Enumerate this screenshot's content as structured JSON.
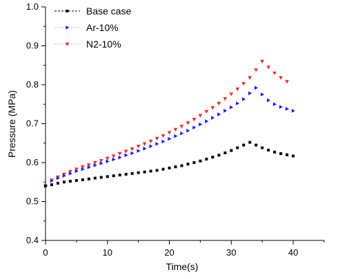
{
  "chart_data": {
    "type": "scatter",
    "xlabel": "Time(s)",
    "ylabel": "Pressure (MPa)",
    "xlim": [
      0,
      45
    ],
    "ylim": [
      0.4,
      1.0
    ],
    "x_ticks": [
      0,
      10,
      20,
      30,
      40
    ],
    "y_ticks": [
      0.4,
      0.5,
      0.6,
      0.7,
      0.8,
      0.9,
      1.0
    ],
    "y_tick_labels": [
      "0.4",
      "0.5",
      "0.6",
      "0.7",
      "0.8",
      "0.9",
      "1.0"
    ],
    "grid": false,
    "legend_position": "top-left",
    "series": [
      {
        "name": "Base case",
        "color": "#000000",
        "marker": "square",
        "points": [
          [
            0.0,
            0.54
          ],
          [
            1.0,
            0.543
          ],
          [
            2.0,
            0.547
          ],
          [
            3.0,
            0.55
          ],
          [
            4.0,
            0.552
          ],
          [
            5.0,
            0.554
          ],
          [
            6.0,
            0.556
          ],
          [
            7.0,
            0.558
          ],
          [
            8.0,
            0.56
          ],
          [
            9.0,
            0.562
          ],
          [
            10.0,
            0.564
          ],
          [
            11.0,
            0.566
          ],
          [
            12.0,
            0.568
          ],
          [
            13.0,
            0.57
          ],
          [
            14.0,
            0.572
          ],
          [
            15.0,
            0.574
          ],
          [
            16.0,
            0.576
          ],
          [
            17.0,
            0.578
          ],
          [
            18.0,
            0.58
          ],
          [
            19.0,
            0.583
          ],
          [
            20.0,
            0.586
          ],
          [
            21.0,
            0.589
          ],
          [
            22.0,
            0.592
          ],
          [
            23.0,
            0.596
          ],
          [
            24.0,
            0.6
          ],
          [
            25.0,
            0.604
          ],
          [
            26.0,
            0.609
          ],
          [
            27.0,
            0.614
          ],
          [
            28.0,
            0.619
          ],
          [
            29.0,
            0.625
          ],
          [
            30.0,
            0.631
          ],
          [
            31.0,
            0.638
          ],
          [
            32.0,
            0.645
          ],
          [
            33.0,
            0.652
          ],
          [
            34.0,
            0.645
          ],
          [
            35.0,
            0.638
          ],
          [
            36.0,
            0.632
          ],
          [
            37.0,
            0.627
          ],
          [
            38.0,
            0.623
          ],
          [
            39.0,
            0.62
          ],
          [
            40.0,
            0.617
          ]
        ]
      },
      {
        "name": "Ar-10%",
        "color": "#1a1aff",
        "marker": "triangle-right",
        "points": [
          [
            0.0,
            0.54
          ],
          [
            1.0,
            0.553
          ],
          [
            2.0,
            0.56
          ],
          [
            3.0,
            0.566
          ],
          [
            4.0,
            0.572
          ],
          [
            5.0,
            0.578
          ],
          [
            6.0,
            0.583
          ],
          [
            7.0,
            0.588
          ],
          [
            8.0,
            0.593
          ],
          [
            9.0,
            0.598
          ],
          [
            10.0,
            0.603
          ],
          [
            11.0,
            0.608
          ],
          [
            12.0,
            0.613
          ],
          [
            13.0,
            0.619
          ],
          [
            14.0,
            0.624
          ],
          [
            15.0,
            0.63
          ],
          [
            16.0,
            0.636
          ],
          [
            17.0,
            0.642
          ],
          [
            18.0,
            0.648
          ],
          [
            19.0,
            0.654
          ],
          [
            20.0,
            0.661
          ],
          [
            21.0,
            0.668
          ],
          [
            22.0,
            0.675
          ],
          [
            23.0,
            0.682
          ],
          [
            24.0,
            0.69
          ],
          [
            25.0,
            0.698
          ],
          [
            26.0,
            0.706
          ],
          [
            27.0,
            0.715
          ],
          [
            28.0,
            0.724
          ],
          [
            29.0,
            0.733
          ],
          [
            30.0,
            0.742
          ],
          [
            31.0,
            0.752
          ],
          [
            32.0,
            0.763
          ],
          [
            33.0,
            0.778
          ],
          [
            34.0,
            0.792
          ],
          [
            35.0,
            0.775
          ],
          [
            36.0,
            0.76
          ],
          [
            37.0,
            0.75
          ],
          [
            38.0,
            0.743
          ],
          [
            39.0,
            0.738
          ],
          [
            40.0,
            0.733
          ]
        ]
      },
      {
        "name": "N2-10%",
        "color": "#e8302a",
        "marker": "triangle-down",
        "points": [
          [
            0.0,
            0.54
          ],
          [
            1.0,
            0.555
          ],
          [
            2.0,
            0.563
          ],
          [
            3.0,
            0.57
          ],
          [
            4.0,
            0.577
          ],
          [
            5.0,
            0.583
          ],
          [
            6.0,
            0.589
          ],
          [
            7.0,
            0.594
          ],
          [
            8.0,
            0.6
          ],
          [
            9.0,
            0.605
          ],
          [
            10.0,
            0.611
          ],
          [
            11.0,
            0.617
          ],
          [
            12.0,
            0.623
          ],
          [
            13.0,
            0.629
          ],
          [
            14.0,
            0.635
          ],
          [
            15.0,
            0.642
          ],
          [
            16.0,
            0.648
          ],
          [
            17.0,
            0.655
          ],
          [
            18.0,
            0.662
          ],
          [
            19.0,
            0.669
          ],
          [
            20.0,
            0.677
          ],
          [
            21.0,
            0.685
          ],
          [
            22.0,
            0.693
          ],
          [
            23.0,
            0.702
          ],
          [
            24.0,
            0.711
          ],
          [
            25.0,
            0.721
          ],
          [
            26.0,
            0.731
          ],
          [
            27.0,
            0.741
          ],
          [
            28.0,
            0.752
          ],
          [
            29.0,
            0.764
          ],
          [
            30.0,
            0.776
          ],
          [
            31.0,
            0.789
          ],
          [
            32.0,
            0.803
          ],
          [
            33.0,
            0.818
          ],
          [
            34.0,
            0.838
          ],
          [
            35.0,
            0.86
          ],
          [
            36.0,
            0.845
          ],
          [
            37.0,
            0.83
          ],
          [
            38.0,
            0.818
          ],
          [
            39.0,
            0.808
          ]
        ]
      }
    ]
  }
}
